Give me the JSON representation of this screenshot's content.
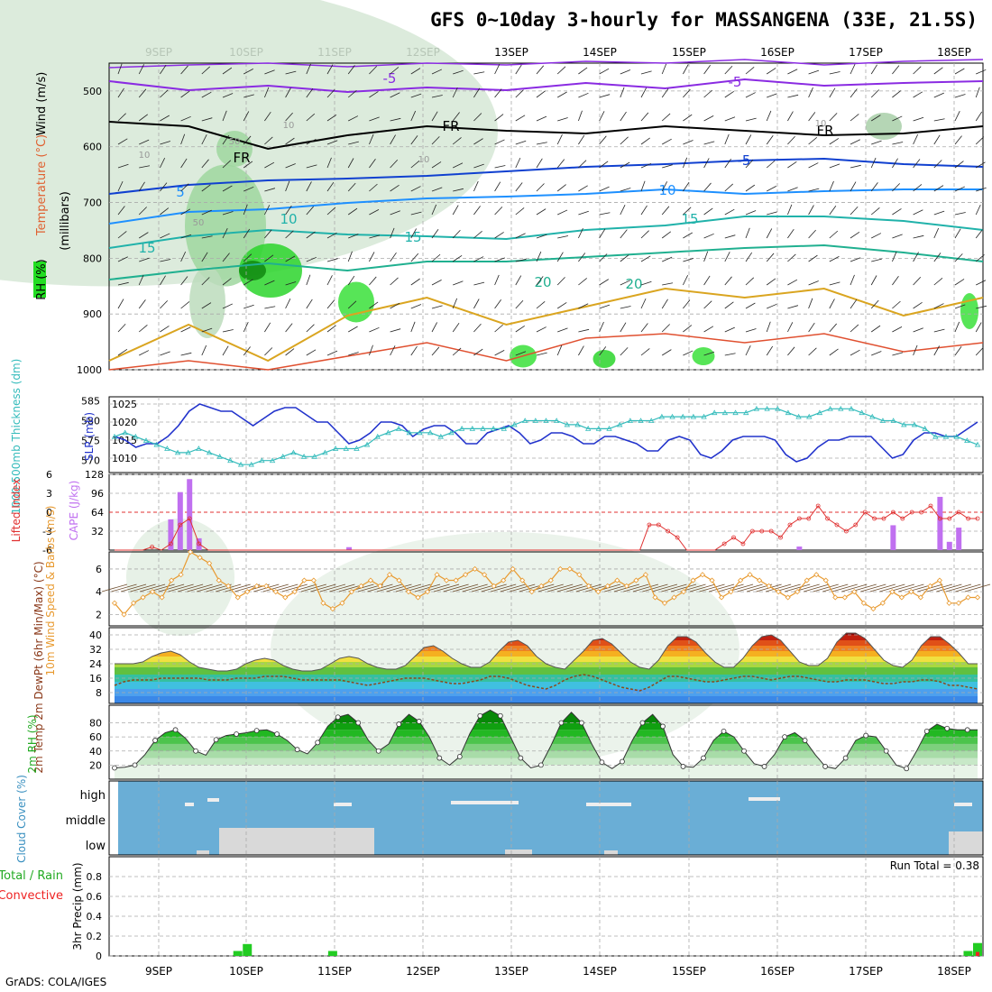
{
  "title": "GFS 0~10day 3-hourly for MASSANGENA (33E, 21.5S)",
  "credit": "GrADS: COLA/IGES",
  "colors": {
    "rh_green": "#22dd22",
    "rh_dark": "#118811",
    "rh_light": "#e3efe3",
    "cloud_bg": "#6aaed6",
    "cloud_fill": "#d9d9d9",
    "slp_line": "#2233cc",
    "thickness_line": "#33bbbb",
    "cape_bar": "#c070f0",
    "lifted_line": "#e03030",
    "wind_line": "#e89a30",
    "dewpoint_line": "#8b4a1a",
    "rain_bar": "#22cc22",
    "conv_bar": "#ee2222"
  },
  "chart_data": {
    "type": "meteogram",
    "title": "GFS 0~10day 3-hourly for MASSANGENA (33E, 21.5S)",
    "x_tick_labels": [
      "9SEP",
      "10SEP",
      "11SEP",
      "12SEP",
      "13SEP",
      "14SEP",
      "15SEP",
      "16SEP",
      "17SEP",
      "18SEP"
    ],
    "panels": [
      {
        "name": "profile",
        "ylabel_parts": [
          "RH (%)",
          "Temperature (°C)",
          "Wind (m/s)",
          "(millibars)"
        ],
        "yticks": [
          500,
          600,
          700,
          800,
          900,
          1000
        ],
        "ylim": [
          450,
          1000
        ],
        "contour_labels": [
          "-5",
          "-5",
          "FR",
          "FR",
          "FR",
          "-5",
          "5",
          "10",
          "15",
          "15",
          "10",
          "15",
          "20",
          "10",
          "20",
          "10",
          "50",
          "50",
          "10",
          "10"
        ]
      },
      {
        "name": "thickness_slp",
        "ylabel_left": "1000-500mb Thickness (dm)",
        "ylabel_right": "SLP (mb)",
        "left_ticks": [
          570,
          575,
          580,
          585
        ],
        "right_ticks": [
          1010,
          1015,
          1020,
          1025
        ],
        "slp": [
          1016,
          1015,
          1013,
          1014,
          1014,
          1016,
          1019,
          1023,
          1025,
          1024,
          1023,
          1023,
          1021,
          1019,
          1021,
          1023,
          1024,
          1024,
          1022,
          1020,
          1020,
          1017,
          1014,
          1015,
          1017,
          1020,
          1020,
          1019,
          1016,
          1018,
          1019,
          1019,
          1017,
          1014,
          1014,
          1017,
          1018,
          1019,
          1017,
          1014,
          1015,
          1017,
          1017,
          1016,
          1014,
          1014,
          1016,
          1016,
          1015,
          1014,
          1012,
          1012,
          1015,
          1016,
          1015,
          1011,
          1010,
          1012,
          1015,
          1016,
          1016,
          1016,
          1015,
          1011,
          1009,
          1010,
          1013,
          1015,
          1015,
          1016,
          1016,
          1016,
          1013,
          1010,
          1011,
          1015,
          1017,
          1017,
          1016,
          1016,
          1018,
          1020
        ],
        "thickness": [
          576,
          577,
          576,
          575,
          574,
          573,
          572,
          572,
          573,
          572,
          571,
          570,
          569,
          569,
          570,
          570,
          571,
          572,
          571,
          571,
          572,
          573,
          573,
          573,
          574,
          576,
          577,
          578,
          577,
          577,
          577,
          576,
          577,
          578,
          578,
          578,
          578,
          578,
          579,
          580,
          580,
          580,
          580,
          579,
          579,
          578,
          578,
          578,
          579,
          580,
          580,
          580,
          581,
          581,
          581,
          581,
          581,
          582,
          582,
          582,
          582,
          583,
          583,
          583,
          582,
          581,
          581,
          582,
          583,
          583,
          583,
          582,
          581,
          580,
          580,
          579,
          579,
          578,
          576,
          576,
          576,
          575,
          574
        ]
      },
      {
        "name": "cape_lifted",
        "ylabel_left": "Lifted Index",
        "ylabel_right": "CAPE (J/kg)",
        "left_ticks": [
          "6",
          "3",
          "0",
          "-3",
          "-6"
        ],
        "right_ticks": [
          32,
          64,
          96,
          128
        ],
        "cape": [
          0,
          0,
          0,
          0,
          0,
          0,
          52,
          98,
          120,
          20,
          0,
          0,
          0,
          0,
          0,
          0,
          0,
          0,
          0,
          0,
          0,
          0,
          0,
          0,
          0,
          5,
          0,
          0,
          0,
          0,
          0,
          0,
          0,
          0,
          0,
          0,
          0,
          0,
          0,
          0,
          0,
          0,
          0,
          0,
          0,
          0,
          0,
          0,
          0,
          0,
          0,
          0,
          0,
          0,
          0,
          0,
          0,
          0,
          0,
          0,
          0,
          0,
          0,
          0,
          0,
          0,
          0,
          0,
          0,
          0,
          0,
          0,
          0,
          6,
          0,
          0,
          0,
          0,
          0,
          0,
          0,
          0,
          0,
          42,
          0,
          0,
          0,
          0,
          90,
          14,
          38,
          0,
          0
        ],
        "lifted_index": [
          6,
          6,
          6,
          6,
          5.5,
          6,
          5,
          2,
          1,
          5,
          6,
          6,
          6,
          6,
          6,
          6,
          6,
          6,
          6,
          6,
          6,
          6,
          6,
          6,
          6,
          6,
          6,
          6,
          6,
          6,
          6,
          6,
          6,
          6,
          6,
          6,
          6,
          6,
          6,
          6,
          6,
          6,
          6,
          6,
          6,
          6,
          6,
          6,
          6,
          6,
          6,
          6,
          6,
          6,
          6,
          6,
          6,
          2,
          2,
          3,
          4,
          6,
          6,
          6,
          6,
          5,
          4,
          5,
          3,
          3,
          3,
          4,
          2,
          1,
          1,
          -1,
          1,
          2,
          3,
          2,
          0,
          1,
          1,
          0,
          1,
          0,
          0,
          -1,
          1,
          1,
          0,
          1,
          1
        ]
      },
      {
        "name": "wind10m",
        "ylabel": "10m Wind Speed & Barbs (m/s)",
        "yticks": [
          2,
          4,
          6
        ],
        "wind_speed": [
          3,
          2,
          3,
          3.5,
          4,
          3.5,
          5,
          5.5,
          7.5,
          7,
          6.5,
          5,
          4.5,
          3.5,
          4,
          4.5,
          4.5,
          4,
          3.5,
          4,
          5,
          5,
          3,
          2.5,
          3,
          4,
          4.5,
          5,
          4.5,
          5.5,
          5,
          4,
          3.5,
          4,
          5.5,
          5,
          5,
          5.5,
          6,
          5.5,
          4.5,
          5,
          6,
          5,
          4,
          4.5,
          5,
          6,
          6,
          5.5,
          4.5,
          4,
          4.5,
          5,
          4.5,
          5,
          5.5,
          3.5,
          3,
          3.5,
          4,
          5,
          5.5,
          5,
          3.5,
          4,
          5,
          5.5,
          5,
          4.5,
          4,
          3.5,
          4,
          5,
          5.5,
          5,
          3.5,
          3.5,
          4,
          3,
          2.5,
          3,
          4,
          3.5,
          4,
          3.5,
          4.5,
          5,
          3,
          3,
          3.5,
          3.5
        ]
      },
      {
        "name": "temp2m",
        "ylabel": "2m Temp 2m DewPt (6hr Min/Max) (°C)",
        "yticks": [
          8,
          16,
          24,
          32,
          40
        ],
        "temperature": [
          24,
          24,
          24,
          25,
          28,
          30,
          31,
          29,
          25,
          22,
          21,
          20,
          20,
          21,
          24,
          26,
          27,
          26,
          23,
          21,
          20,
          20,
          21,
          24,
          27,
          28,
          27,
          24,
          22,
          21,
          21,
          23,
          28,
          33,
          34,
          31,
          27,
          24,
          22,
          22,
          25,
          31,
          36,
          37,
          34,
          28,
          24,
          22,
          21,
          26,
          31,
          37,
          38,
          35,
          30,
          25,
          22,
          21,
          26,
          34,
          39,
          39,
          36,
          30,
          25,
          22,
          22,
          27,
          34,
          39,
          40,
          37,
          31,
          25,
          23,
          23,
          27,
          36,
          41,
          41,
          38,
          32,
          26,
          23,
          22,
          26,
          34,
          39,
          39,
          35,
          30,
          24,
          24
        ],
        "dewpoint": [
          12,
          14,
          15,
          15,
          15,
          16,
          16,
          16,
          16,
          16,
          15,
          15,
          15,
          16,
          16,
          16,
          17,
          17,
          17,
          16,
          15,
          15,
          15,
          15,
          15,
          14,
          13,
          12,
          13,
          14,
          15,
          16,
          16,
          16,
          15,
          14,
          13,
          13,
          14,
          15,
          17,
          17,
          16,
          14,
          12,
          11,
          10,
          12,
          15,
          17,
          18,
          17,
          15,
          13,
          11,
          10,
          9,
          11,
          14,
          17,
          17,
          16,
          15,
          14,
          14,
          15,
          16,
          17,
          17,
          16,
          15,
          16,
          17,
          17,
          16,
          15,
          14,
          14,
          15,
          15,
          15,
          14,
          13,
          13,
          14,
          14,
          15,
          15,
          14,
          12,
          12,
          11,
          10
        ]
      },
      {
        "name": "rh2m",
        "ylabel": "2m RH (%)",
        "yticks": [
          20,
          40,
          60,
          80
        ],
        "rh": [
          16,
          17,
          20,
          35,
          55,
          66,
          70,
          58,
          40,
          34,
          56,
          62,
          64,
          66,
          69,
          70,
          64,
          55,
          42,
          36,
          52,
          75,
          88,
          92,
          80,
          55,
          40,
          50,
          78,
          92,
          82,
          60,
          30,
          20,
          32,
          65,
          90,
          98,
          90,
          60,
          30,
          16,
          20,
          48,
          80,
          95,
          80,
          50,
          24,
          15,
          25,
          55,
          80,
          92,
          75,
          35,
          18,
          17,
          30,
          55,
          68,
          60,
          40,
          22,
          18,
          35,
          60,
          66,
          55,
          35,
          18,
          15,
          30,
          55,
          62,
          60,
          40,
          20,
          15,
          40,
          68,
          78,
          72,
          70,
          70,
          70
        ]
      },
      {
        "name": "cloud",
        "ylabel": "Cloud Cover (%)",
        "levels": [
          "high",
          "middle",
          "low"
        ]
      },
      {
        "name": "precip",
        "ylabel_parts": [
          "Total / Rain",
          "Convective",
          "3hr Precip (mm)"
        ],
        "yticks": [
          0,
          0.2,
          0.4,
          0.6,
          0.8
        ],
        "run_total_label": "Run Total = 0.38",
        "rain": [
          0,
          0,
          0,
          0,
          0,
          0,
          0,
          0,
          0,
          0,
          0,
          0,
          0,
          0.05,
          0.12,
          0,
          0,
          0,
          0,
          0,
          0,
          0,
          0,
          0.05,
          0,
          0,
          0,
          0,
          0,
          0,
          0,
          0,
          0,
          0,
          0,
          0,
          0,
          0,
          0,
          0,
          0,
          0,
          0,
          0,
          0,
          0,
          0,
          0,
          0,
          0,
          0,
          0,
          0,
          0,
          0,
          0,
          0,
          0,
          0,
          0,
          0,
          0,
          0,
          0,
          0,
          0,
          0,
          0,
          0,
          0,
          0,
          0,
          0,
          0,
          0,
          0,
          0,
          0,
          0,
          0,
          0,
          0,
          0,
          0,
          0,
          0,
          0,
          0,
          0,
          0,
          0.05,
          0.13
        ],
        "convective": [
          0,
          0,
          0,
          0,
          0,
          0,
          0,
          0,
          0,
          0,
          0,
          0,
          0,
          0,
          0,
          0,
          0,
          0,
          0,
          0,
          0,
          0,
          0,
          0,
          0,
          0,
          0,
          0,
          0,
          0,
          0,
          0,
          0,
          0,
          0,
          0,
          0,
          0,
          0,
          0,
          0,
          0,
          0,
          0,
          0,
          0,
          0,
          0,
          0,
          0,
          0,
          0,
          0,
          0,
          0,
          0,
          0,
          0,
          0,
          0,
          0,
          0,
          0,
          0,
          0,
          0,
          0,
          0,
          0,
          0,
          0,
          0,
          0,
          0,
          0,
          0,
          0,
          0,
          0,
          0,
          0,
          0,
          0,
          0,
          0,
          0,
          0,
          0,
          0,
          0,
          0,
          0.04,
          0
        ]
      }
    ]
  }
}
